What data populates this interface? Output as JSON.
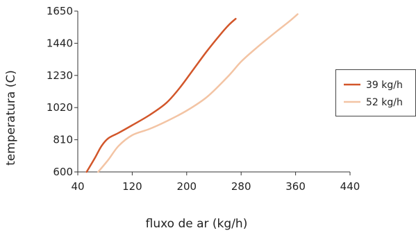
{
  "chart_data": {
    "type": "line",
    "xlabel": "fluxo de ar (kg/h)",
    "ylabel": "temperatura (C)",
    "xlim": [
      40,
      440
    ],
    "ylim": [
      600,
      1650
    ],
    "xticks": [
      40,
      120,
      200,
      280,
      360,
      440
    ],
    "yticks": [
      600,
      810,
      1020,
      1230,
      1440,
      1650
    ],
    "xtick_labels": [
      "40",
      "120",
      "200",
      "280",
      "360",
      "440"
    ],
    "ytick_labels": [
      "600",
      "810",
      "1020",
      "1230",
      "1440",
      "1650"
    ],
    "grid": false,
    "legend_position": "right",
    "series": [
      {
        "name": "39 kg/h",
        "color": "#d2562a",
        "points": [
          [
            53,
            600
          ],
          [
            65,
            690
          ],
          [
            75,
            770
          ],
          [
            85,
            820
          ],
          [
            100,
            855
          ],
          [
            120,
            905
          ],
          [
            145,
            970
          ],
          [
            170,
            1050
          ],
          [
            190,
            1150
          ],
          [
            210,
            1270
          ],
          [
            230,
            1390
          ],
          [
            250,
            1500
          ],
          [
            262,
            1560
          ],
          [
            272,
            1600
          ]
        ]
      },
      {
        "name": "52 kg/h",
        "color": "#f3c4a4",
        "points": [
          [
            70,
            600
          ],
          [
            85,
            680
          ],
          [
            100,
            770
          ],
          [
            120,
            840
          ],
          [
            145,
            880
          ],
          [
            170,
            930
          ],
          [
            200,
            1000
          ],
          [
            230,
            1090
          ],
          [
            260,
            1220
          ],
          [
            280,
            1320
          ],
          [
            300,
            1400
          ],
          [
            330,
            1510
          ],
          [
            350,
            1580
          ],
          [
            363,
            1630
          ]
        ]
      }
    ]
  }
}
